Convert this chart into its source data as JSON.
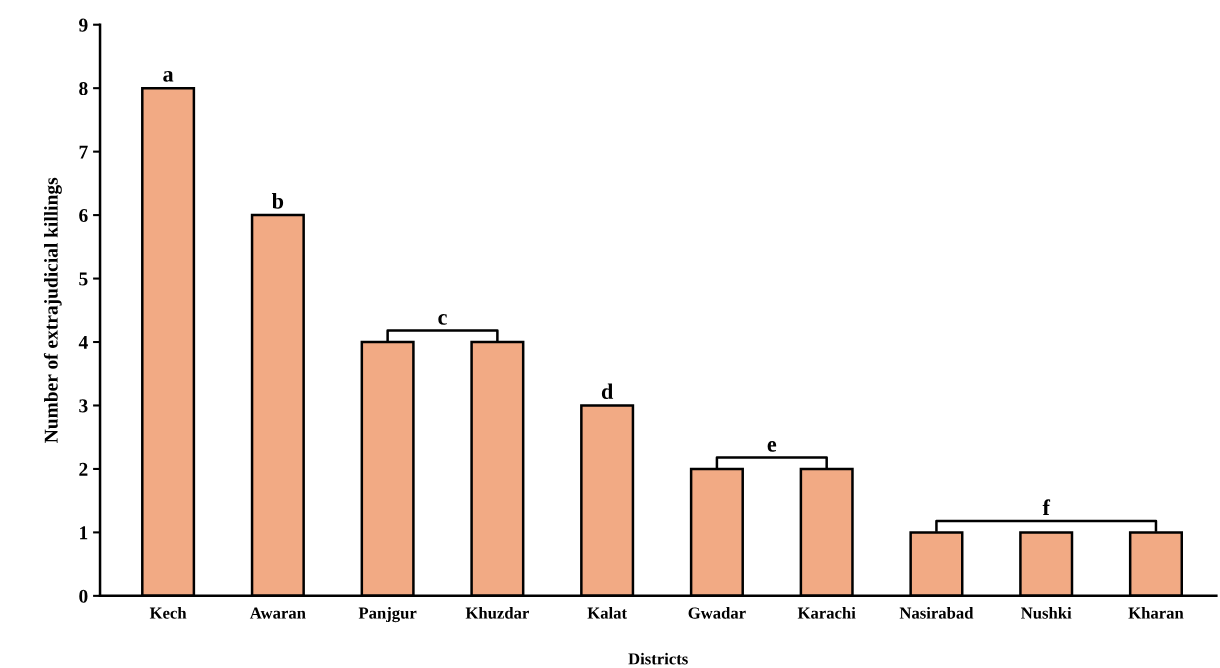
{
  "chart_data": {
    "type": "bar",
    "xlabel": "Districts",
    "ylabel": "Number of extrajudicial killings",
    "categories": [
      "Kech",
      "Awaran",
      "Panjgur",
      "Khuzdar",
      "Kalat",
      "Gwadar",
      "Karachi",
      "Nasirabad",
      "Nushki",
      "Kharan"
    ],
    "values": [
      8,
      6,
      4,
      4,
      3,
      2,
      2,
      1,
      1,
      1
    ],
    "color": "#f2aa84",
    "ylim": [
      0,
      9
    ],
    "yticks": [
      0,
      1,
      2,
      3,
      4,
      5,
      6,
      7,
      8,
      9
    ],
    "grid": false,
    "annotations": [
      "a",
      "b",
      "c",
      "d",
      "e",
      "f"
    ]
  }
}
